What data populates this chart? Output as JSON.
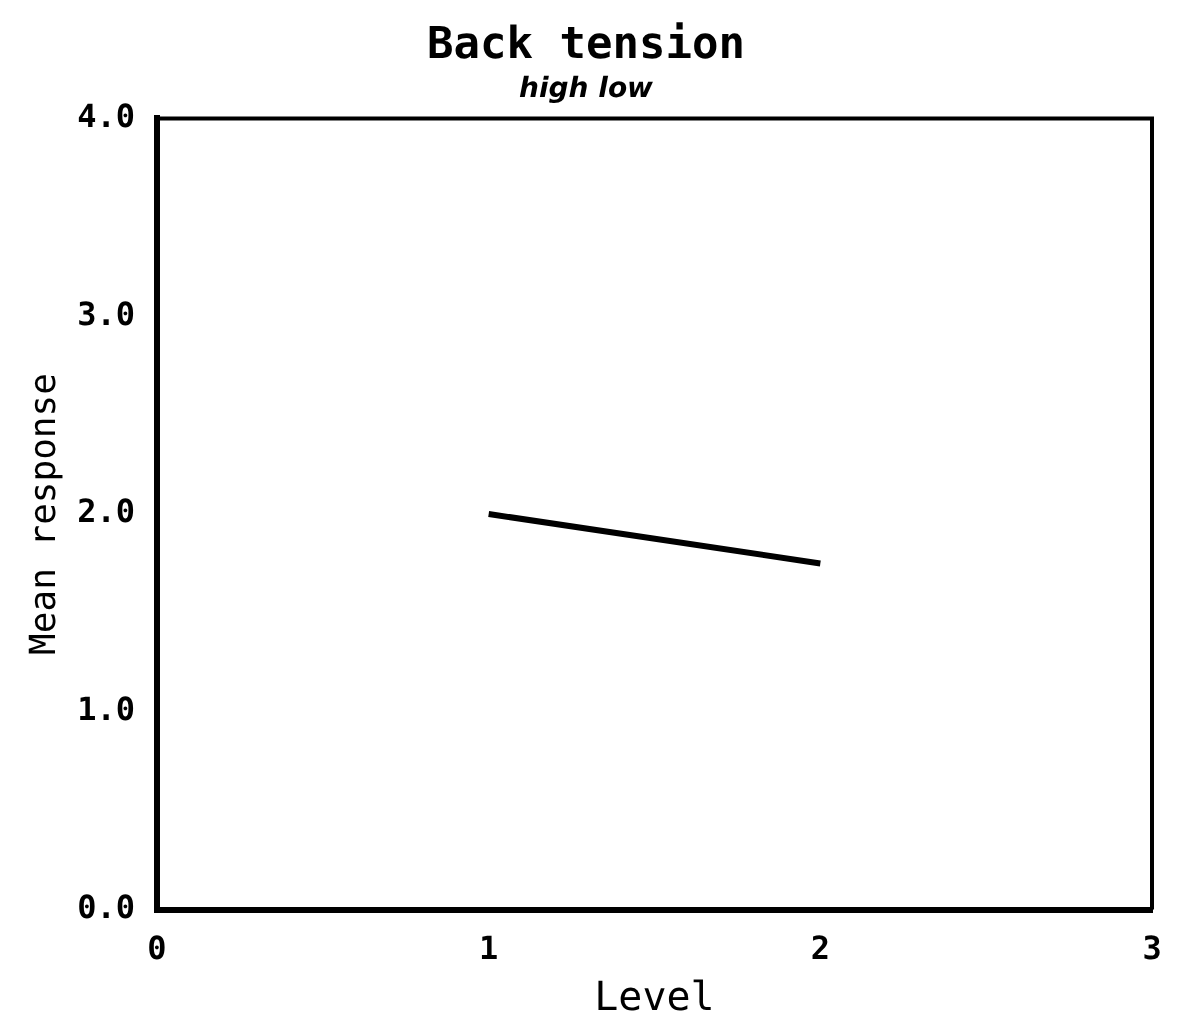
{
  "chart_data": {
    "type": "line",
    "title": "Back tension",
    "subtitle": "high low",
    "xlabel": "Level",
    "ylabel": "Mean response",
    "x": [
      1,
      2
    ],
    "series": [
      {
        "color": "#000000",
        "values": [
          2.0,
          1.75
        ]
      }
    ],
    "xlim": [
      0,
      3
    ],
    "xticks": [
      0,
      1,
      2,
      3
    ],
    "ylim": [
      0,
      4
    ],
    "yticks": [
      {
        "value": 0,
        "label": "0.0"
      },
      {
        "value": 1,
        "label": "1.0"
      },
      {
        "value": 2,
        "label": "2.0"
      },
      {
        "value": 3,
        "label": "3.0"
      },
      {
        "value": 4,
        "label": "4.0"
      }
    ],
    "grid": false,
    "legend": false
  }
}
